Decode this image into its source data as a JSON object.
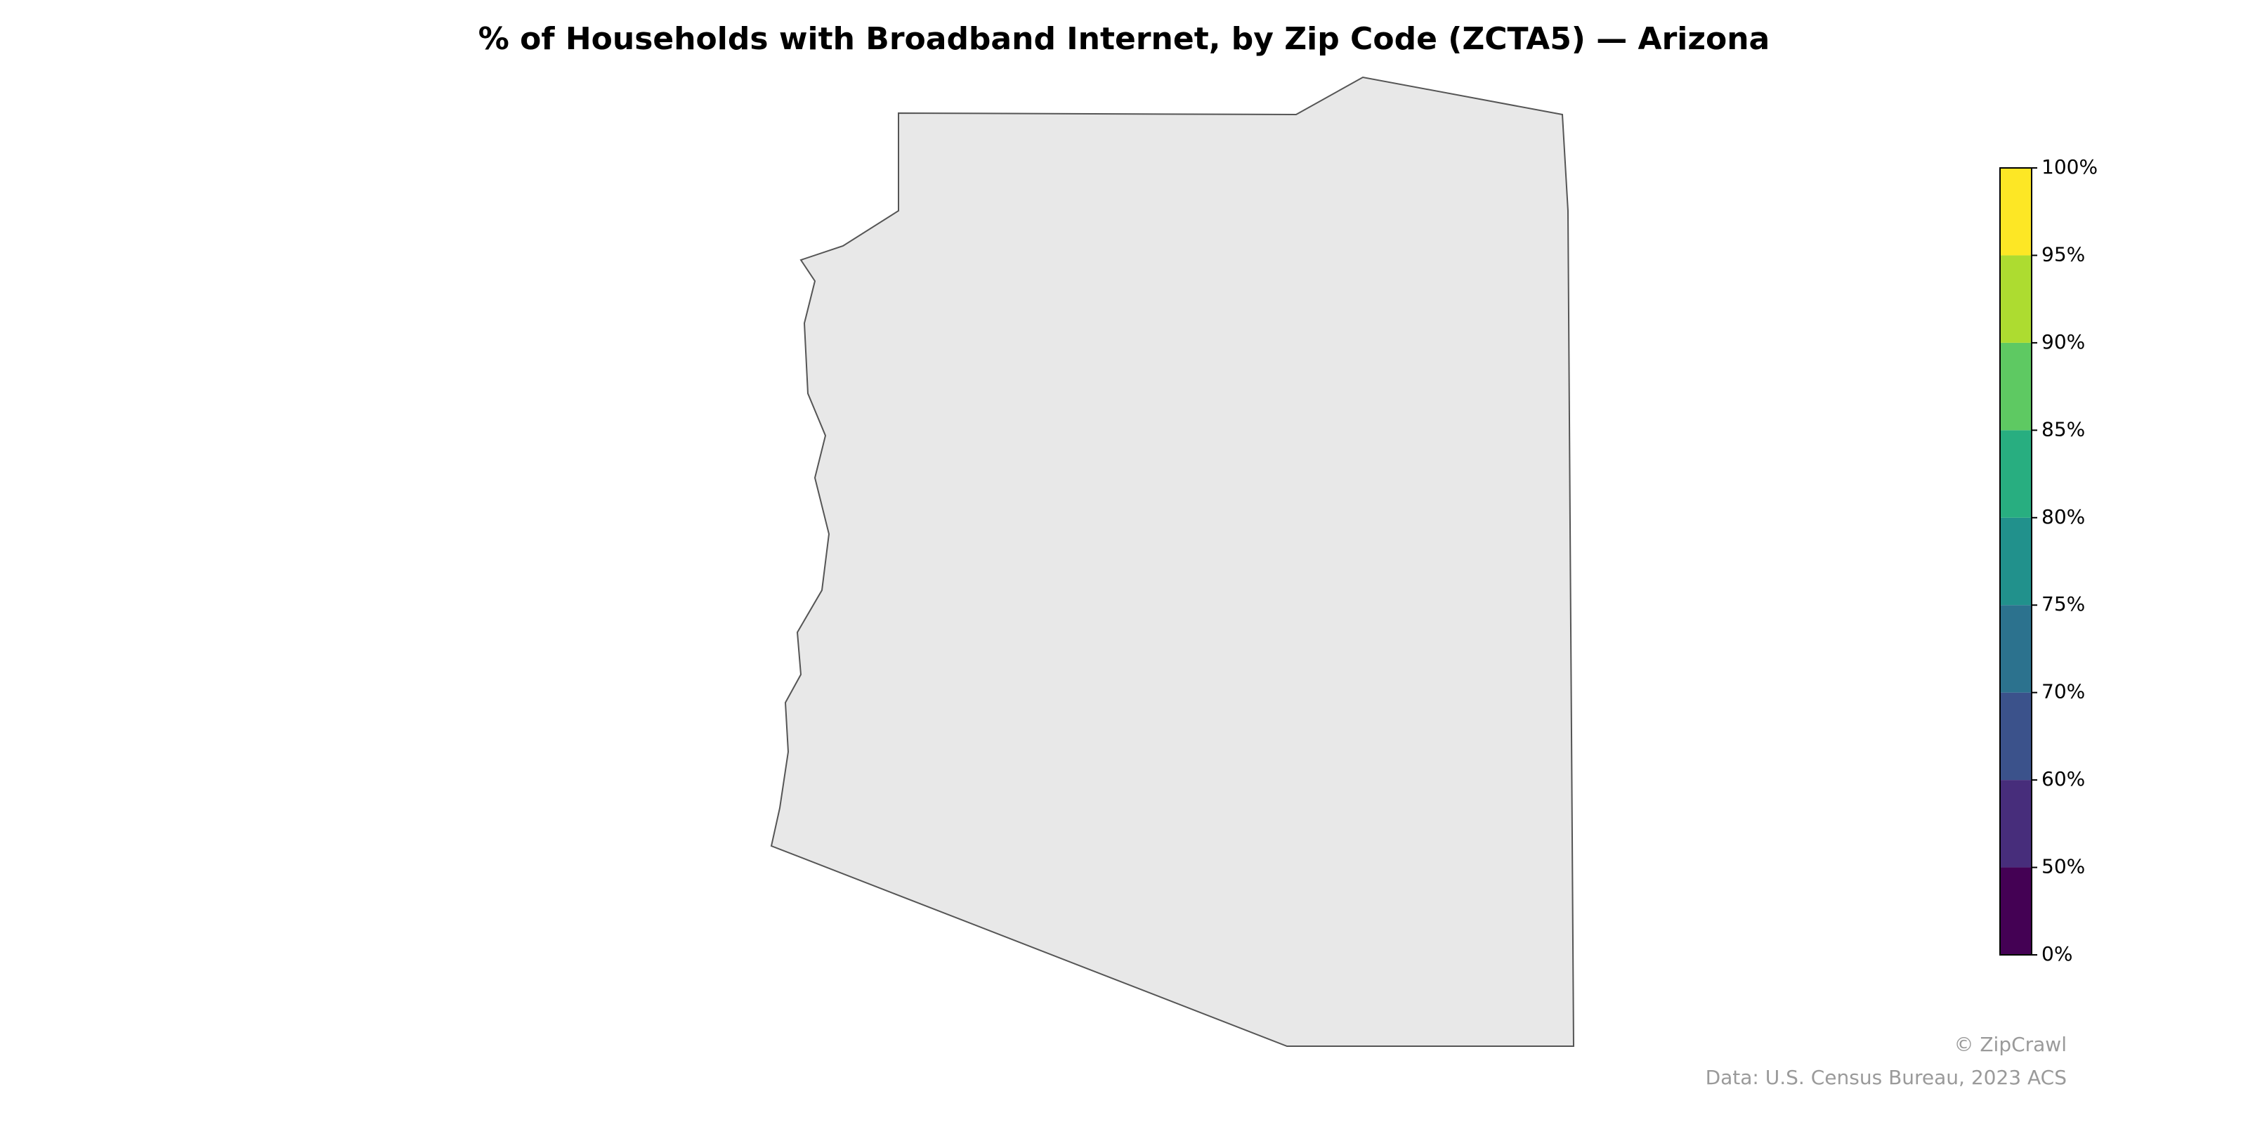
{
  "map": {
    "title": "% of Households with Broadband Internet, by Zip Code (ZCTA5) — Arizona",
    "colorbar": {
      "ticks": [
        {
          "value": 0,
          "label": "0%"
        },
        {
          "value": 50,
          "label": "50%"
        },
        {
          "value": 60,
          "label": "60%"
        },
        {
          "value": 70,
          "label": "70%"
        },
        {
          "value": 75,
          "label": "75%"
        },
        {
          "value": 80,
          "label": "80%"
        },
        {
          "value": 85,
          "label": "85%"
        },
        {
          "value": 90,
          "label": "90%"
        },
        {
          "value": 95,
          "label": "95%"
        },
        {
          "value": 100,
          "label": "100%"
        }
      ],
      "colors": [
        "#440154",
        "#472d7b",
        "#3b528b",
        "#2c728e",
        "#21918c",
        "#28ae80",
        "#5ec962",
        "#addc30",
        "#fde725"
      ]
    },
    "credit": "© ZipCrawl",
    "source": "Data: U.S. Census Bureau, 2023 ACS"
  }
}
